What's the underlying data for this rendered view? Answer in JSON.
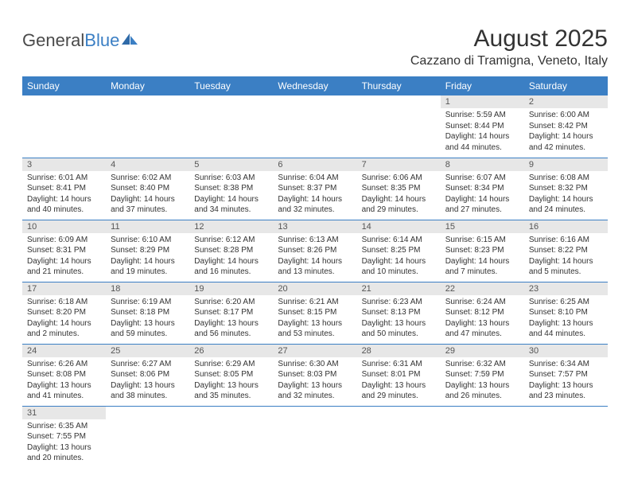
{
  "brand": {
    "part1": "General",
    "part2": "Blue"
  },
  "title": "August 2025",
  "location": "Cazzano di Tramigna, Veneto, Italy",
  "colors": {
    "header_bg": "#3b7fc4",
    "header_fg": "#ffffff",
    "daynum_bg": "#e7e7e7",
    "daynum_fg": "#555555",
    "text": "#333333",
    "row_divider": "#3b7fc4",
    "page_bg": "#ffffff"
  },
  "fonts": {
    "title_size_pt": 22,
    "location_size_pt": 12,
    "th_size_pt": 9,
    "cell_size_pt": 7.5
  },
  "day_headers": [
    "Sunday",
    "Monday",
    "Tuesday",
    "Wednesday",
    "Thursday",
    "Friday",
    "Saturday"
  ],
  "weeks": [
    [
      null,
      null,
      null,
      null,
      null,
      {
        "n": "1",
        "sunrise": "Sunrise: 5:59 AM",
        "sunset": "Sunset: 8:44 PM",
        "daylight": "Daylight: 14 hours and 44 minutes."
      },
      {
        "n": "2",
        "sunrise": "Sunrise: 6:00 AM",
        "sunset": "Sunset: 8:42 PM",
        "daylight": "Daylight: 14 hours and 42 minutes."
      }
    ],
    [
      {
        "n": "3",
        "sunrise": "Sunrise: 6:01 AM",
        "sunset": "Sunset: 8:41 PM",
        "daylight": "Daylight: 14 hours and 40 minutes."
      },
      {
        "n": "4",
        "sunrise": "Sunrise: 6:02 AM",
        "sunset": "Sunset: 8:40 PM",
        "daylight": "Daylight: 14 hours and 37 minutes."
      },
      {
        "n": "5",
        "sunrise": "Sunrise: 6:03 AM",
        "sunset": "Sunset: 8:38 PM",
        "daylight": "Daylight: 14 hours and 34 minutes."
      },
      {
        "n": "6",
        "sunrise": "Sunrise: 6:04 AM",
        "sunset": "Sunset: 8:37 PM",
        "daylight": "Daylight: 14 hours and 32 minutes."
      },
      {
        "n": "7",
        "sunrise": "Sunrise: 6:06 AM",
        "sunset": "Sunset: 8:35 PM",
        "daylight": "Daylight: 14 hours and 29 minutes."
      },
      {
        "n": "8",
        "sunrise": "Sunrise: 6:07 AM",
        "sunset": "Sunset: 8:34 PM",
        "daylight": "Daylight: 14 hours and 27 minutes."
      },
      {
        "n": "9",
        "sunrise": "Sunrise: 6:08 AM",
        "sunset": "Sunset: 8:32 PM",
        "daylight": "Daylight: 14 hours and 24 minutes."
      }
    ],
    [
      {
        "n": "10",
        "sunrise": "Sunrise: 6:09 AM",
        "sunset": "Sunset: 8:31 PM",
        "daylight": "Daylight: 14 hours and 21 minutes."
      },
      {
        "n": "11",
        "sunrise": "Sunrise: 6:10 AM",
        "sunset": "Sunset: 8:29 PM",
        "daylight": "Daylight: 14 hours and 19 minutes."
      },
      {
        "n": "12",
        "sunrise": "Sunrise: 6:12 AM",
        "sunset": "Sunset: 8:28 PM",
        "daylight": "Daylight: 14 hours and 16 minutes."
      },
      {
        "n": "13",
        "sunrise": "Sunrise: 6:13 AM",
        "sunset": "Sunset: 8:26 PM",
        "daylight": "Daylight: 14 hours and 13 minutes."
      },
      {
        "n": "14",
        "sunrise": "Sunrise: 6:14 AM",
        "sunset": "Sunset: 8:25 PM",
        "daylight": "Daylight: 14 hours and 10 minutes."
      },
      {
        "n": "15",
        "sunrise": "Sunrise: 6:15 AM",
        "sunset": "Sunset: 8:23 PM",
        "daylight": "Daylight: 14 hours and 7 minutes."
      },
      {
        "n": "16",
        "sunrise": "Sunrise: 6:16 AM",
        "sunset": "Sunset: 8:22 PM",
        "daylight": "Daylight: 14 hours and 5 minutes."
      }
    ],
    [
      {
        "n": "17",
        "sunrise": "Sunrise: 6:18 AM",
        "sunset": "Sunset: 8:20 PM",
        "daylight": "Daylight: 14 hours and 2 minutes."
      },
      {
        "n": "18",
        "sunrise": "Sunrise: 6:19 AM",
        "sunset": "Sunset: 8:18 PM",
        "daylight": "Daylight: 13 hours and 59 minutes."
      },
      {
        "n": "19",
        "sunrise": "Sunrise: 6:20 AM",
        "sunset": "Sunset: 8:17 PM",
        "daylight": "Daylight: 13 hours and 56 minutes."
      },
      {
        "n": "20",
        "sunrise": "Sunrise: 6:21 AM",
        "sunset": "Sunset: 8:15 PM",
        "daylight": "Daylight: 13 hours and 53 minutes."
      },
      {
        "n": "21",
        "sunrise": "Sunrise: 6:23 AM",
        "sunset": "Sunset: 8:13 PM",
        "daylight": "Daylight: 13 hours and 50 minutes."
      },
      {
        "n": "22",
        "sunrise": "Sunrise: 6:24 AM",
        "sunset": "Sunset: 8:12 PM",
        "daylight": "Daylight: 13 hours and 47 minutes."
      },
      {
        "n": "23",
        "sunrise": "Sunrise: 6:25 AM",
        "sunset": "Sunset: 8:10 PM",
        "daylight": "Daylight: 13 hours and 44 minutes."
      }
    ],
    [
      {
        "n": "24",
        "sunrise": "Sunrise: 6:26 AM",
        "sunset": "Sunset: 8:08 PM",
        "daylight": "Daylight: 13 hours and 41 minutes."
      },
      {
        "n": "25",
        "sunrise": "Sunrise: 6:27 AM",
        "sunset": "Sunset: 8:06 PM",
        "daylight": "Daylight: 13 hours and 38 minutes."
      },
      {
        "n": "26",
        "sunrise": "Sunrise: 6:29 AM",
        "sunset": "Sunset: 8:05 PM",
        "daylight": "Daylight: 13 hours and 35 minutes."
      },
      {
        "n": "27",
        "sunrise": "Sunrise: 6:30 AM",
        "sunset": "Sunset: 8:03 PM",
        "daylight": "Daylight: 13 hours and 32 minutes."
      },
      {
        "n": "28",
        "sunrise": "Sunrise: 6:31 AM",
        "sunset": "Sunset: 8:01 PM",
        "daylight": "Daylight: 13 hours and 29 minutes."
      },
      {
        "n": "29",
        "sunrise": "Sunrise: 6:32 AM",
        "sunset": "Sunset: 7:59 PM",
        "daylight": "Daylight: 13 hours and 26 minutes."
      },
      {
        "n": "30",
        "sunrise": "Sunrise: 6:34 AM",
        "sunset": "Sunset: 7:57 PM",
        "daylight": "Daylight: 13 hours and 23 minutes."
      }
    ],
    [
      {
        "n": "31",
        "sunrise": "Sunrise: 6:35 AM",
        "sunset": "Sunset: 7:55 PM",
        "daylight": "Daylight: 13 hours and 20 minutes."
      },
      null,
      null,
      null,
      null,
      null,
      null
    ]
  ]
}
